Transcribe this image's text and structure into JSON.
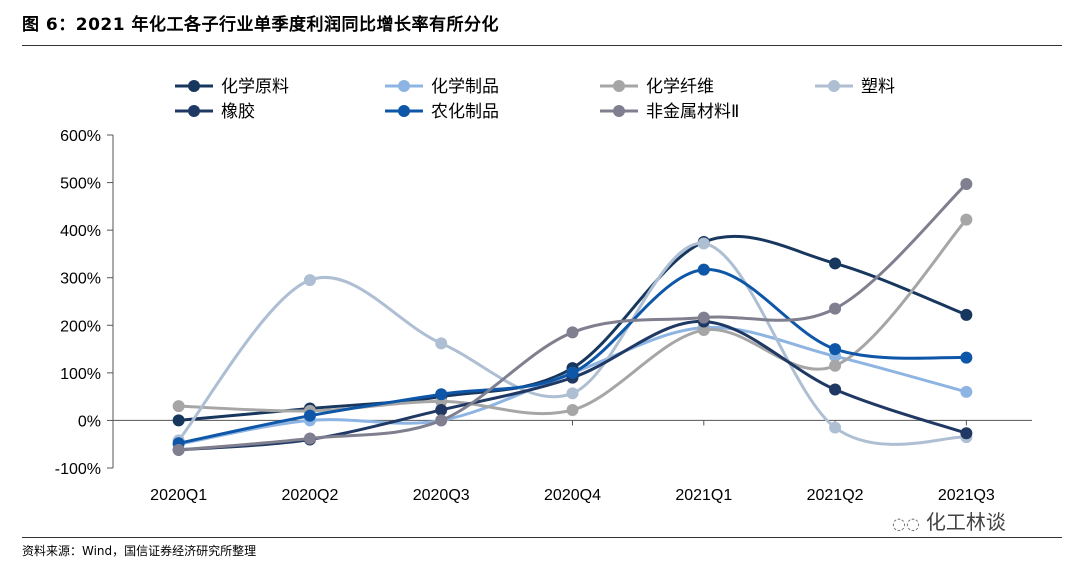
{
  "figure": {
    "title": "图 6：2021 年化工各子行业单季度利润同比增长率有所分化",
    "source": "资料来源：Wind，国信证券经济研究所整理",
    "watermark": "化工林谈",
    "watermark_icon": "wechat-icon"
  },
  "chart_data": {
    "type": "line",
    "categories": [
      "2020Q1",
      "2020Q2",
      "2020Q3",
      "2020Q4",
      "2021Q1",
      "2021Q2",
      "2021Q3"
    ],
    "ylim": [
      -100,
      600
    ],
    "yticks": [
      -100,
      0,
      100,
      200,
      300,
      400,
      500,
      600
    ],
    "ytick_labels": [
      "-100%",
      "0%",
      "100%",
      "200%",
      "300%",
      "400%",
      "500%",
      "600%"
    ],
    "smooth": true,
    "grid": false,
    "legend_position": "top",
    "series": [
      {
        "name": "化学原料",
        "color": "#17375e",
        "values": [
          0,
          25,
          50,
          110,
          375,
          330,
          222
        ]
      },
      {
        "name": "化学制品",
        "color": "#8db4e2",
        "values": [
          -50,
          0,
          0,
          100,
          195,
          135,
          60
        ]
      },
      {
        "name": "化学纤维",
        "color": "#a6a6a6",
        "values": [
          30,
          20,
          40,
          22,
          190,
          115,
          422
        ]
      },
      {
        "name": "塑料",
        "color": "#aebfd3",
        "values": [
          -42,
          295,
          162,
          57,
          372,
          -15,
          -35
        ]
      },
      {
        "name": "橡胶",
        "color": "#1f3864",
        "values": [
          -62,
          -40,
          22,
          90,
          208,
          65,
          -27
        ]
      },
      {
        "name": "农化制品",
        "color": "#0e56a8",
        "values": [
          -48,
          10,
          55,
          100,
          317,
          150,
          132
        ]
      },
      {
        "name": "非金属材料Ⅱ",
        "color": "#7f7f8f",
        "values": [
          -62,
          -38,
          0,
          185,
          216,
          235,
          497
        ]
      }
    ]
  }
}
